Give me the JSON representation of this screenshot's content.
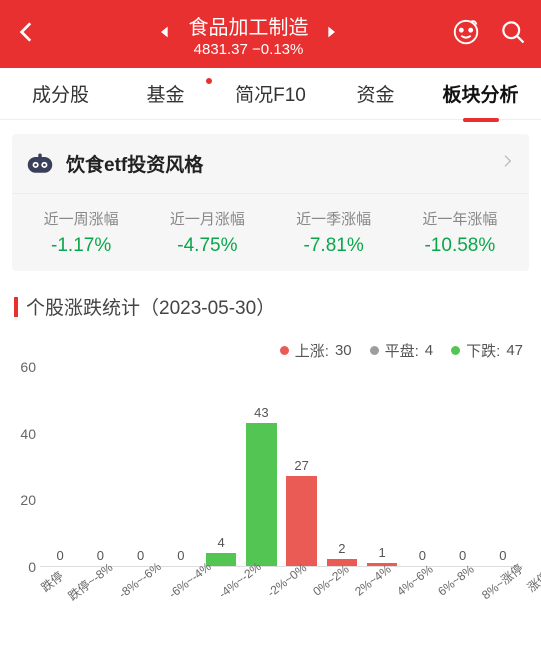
{
  "header": {
    "title": "食品加工制造",
    "index_value": "4831.37",
    "change_pct": "−0.13%"
  },
  "tabs": [
    {
      "label": "成分股",
      "active": false,
      "dot": false
    },
    {
      "label": "基金",
      "active": false,
      "dot": true
    },
    {
      "label": "简况F10",
      "active": false,
      "dot": false
    },
    {
      "label": "资金",
      "active": false,
      "dot": false
    },
    {
      "label": "板块分析",
      "active": true,
      "dot": false
    }
  ],
  "etf_card": {
    "title": "饮食etf投资风格"
  },
  "period_stats": [
    {
      "label": "近一周涨幅",
      "value": "-1.17%",
      "color": "green"
    },
    {
      "label": "近一月涨幅",
      "value": "-4.75%",
      "color": "green"
    },
    {
      "label": "近一季涨幅",
      "value": "-7.81%",
      "color": "green"
    },
    {
      "label": "近一年涨幅",
      "value": "-10.58%",
      "color": "green"
    }
  ],
  "section": {
    "title": "个股涨跌统计（2023-05-30）"
  },
  "legend": {
    "up_label": "上涨:",
    "up_count": "30",
    "flat_label": "平盘:",
    "flat_count": "4",
    "down_label": "下跌:",
    "down_count": "47"
  },
  "chart": {
    "type": "bar",
    "y_max": 60,
    "y_ticks": [
      0,
      20,
      40,
      60
    ],
    "bar_color_up": "#ea5b56",
    "bar_color_down": "#52c552",
    "bar_color_flat": "#9d9d9d",
    "bars": [
      {
        "label": "跌停",
        "value": 0,
        "dir": "down"
      },
      {
        "label": "跌停~-8%",
        "value": 0,
        "dir": "down"
      },
      {
        "label": "-8%~-6%",
        "value": 0,
        "dir": "down"
      },
      {
        "label": "-6%~-4%",
        "value": 0,
        "dir": "down"
      },
      {
        "label": "-4%~-2%",
        "value": 4,
        "dir": "down"
      },
      {
        "label": "-2%~0%",
        "value": 43,
        "dir": "down"
      },
      {
        "label": "0%~2%",
        "value": 27,
        "dir": "up"
      },
      {
        "label": "2%~4%",
        "value": 2,
        "dir": "up"
      },
      {
        "label": "4%~6%",
        "value": 1,
        "dir": "up"
      },
      {
        "label": "6%~8%",
        "value": 0,
        "dir": "up"
      },
      {
        "label": "8%~涨停",
        "value": 0,
        "dir": "up"
      },
      {
        "label": "涨停",
        "value": 0,
        "dir": "up"
      }
    ]
  }
}
